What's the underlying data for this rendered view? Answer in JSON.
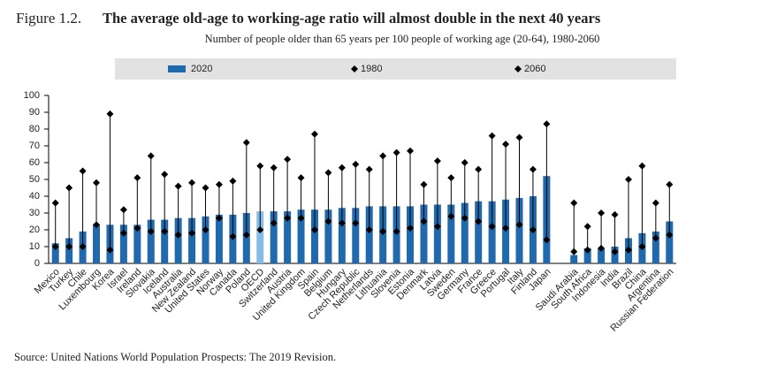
{
  "chart_data": {
    "type": "bar",
    "title_prefix": "Figure 1.2.",
    "title": "The average old-age to working-age ratio will almost double in the next 40 years",
    "subtitle": "Number of people older than 65 years per 100 people of working age (20-64), 1980-2060",
    "source": "Source: United Nations World Population Prospects: The 2019 Revision.",
    "categories": [
      "Mexico",
      "Turkey",
      "Chile",
      "Luxembourg",
      "Korea",
      "Israel",
      "Ireland",
      "Slovakia",
      "Iceland",
      "Australia",
      "New Zealand",
      "United States",
      "Norway",
      "Canada",
      "Poland",
      "OECD",
      "Switzerland",
      "Austria",
      "United Kingdom",
      "Spain",
      "Belgium",
      "Hungary",
      "Czech Republic",
      "Netherlands",
      "Lithuania",
      "Slovenia",
      "Estonia",
      "Denmark",
      "Latvia",
      "Sweden",
      "Germany",
      "France",
      "Greece",
      "Portugal",
      "Italy",
      "Finland",
      "Japan",
      null,
      "Saudi Arabia",
      "South Africa",
      "Indonesia",
      "India",
      "Brazil",
      "China",
      "Argentina",
      "Russian Federation"
    ],
    "series": [
      {
        "name": "2020",
        "marker": "bar",
        "color": "#1f69ac",
        "highlight": "OECD",
        "highlight_color": "#85bce6",
        "values": [
          12,
          15,
          19,
          23,
          23,
          23,
          23,
          26,
          26,
          27,
          27,
          28,
          29,
          29,
          30,
          31,
          31,
          31,
          32,
          32,
          32,
          33,
          33,
          34,
          34,
          34,
          34,
          35,
          35,
          35,
          36,
          37,
          37,
          38,
          39,
          40,
          52,
          null,
          5,
          9,
          9,
          10,
          15,
          18,
          19,
          25
        ]
      },
      {
        "name": "1980",
        "marker": "diamond",
        "color": "#000000",
        "values": [
          10,
          10,
          10,
          23,
          8,
          18,
          21,
          19,
          19,
          17,
          18,
          20,
          27,
          16,
          17,
          20,
          24,
          27,
          27,
          20,
          25,
          24,
          24,
          20,
          19,
          19,
          21,
          25,
          22,
          28,
          27,
          25,
          22,
          21,
          23,
          20,
          14,
          null,
          7,
          8,
          9,
          7,
          8,
          10,
          15,
          17
        ]
      },
      {
        "name": "2060",
        "marker": "diamond",
        "color": "#000000",
        "values": [
          36,
          45,
          55,
          48,
          89,
          32,
          51,
          64,
          53,
          46,
          48,
          45,
          47,
          49,
          72,
          58,
          57,
          62,
          51,
          77,
          54,
          57,
          59,
          56,
          64,
          66,
          67,
          47,
          61,
          51,
          60,
          56,
          76,
          71,
          75,
          56,
          83,
          null,
          36,
          22,
          30,
          29,
          50,
          58,
          36,
          47
        ]
      }
    ],
    "ylim": [
      0,
      100
    ],
    "yticks": [
      0,
      10,
      20,
      30,
      40,
      50,
      60,
      70,
      80,
      90,
      100
    ],
    "grid": false
  }
}
